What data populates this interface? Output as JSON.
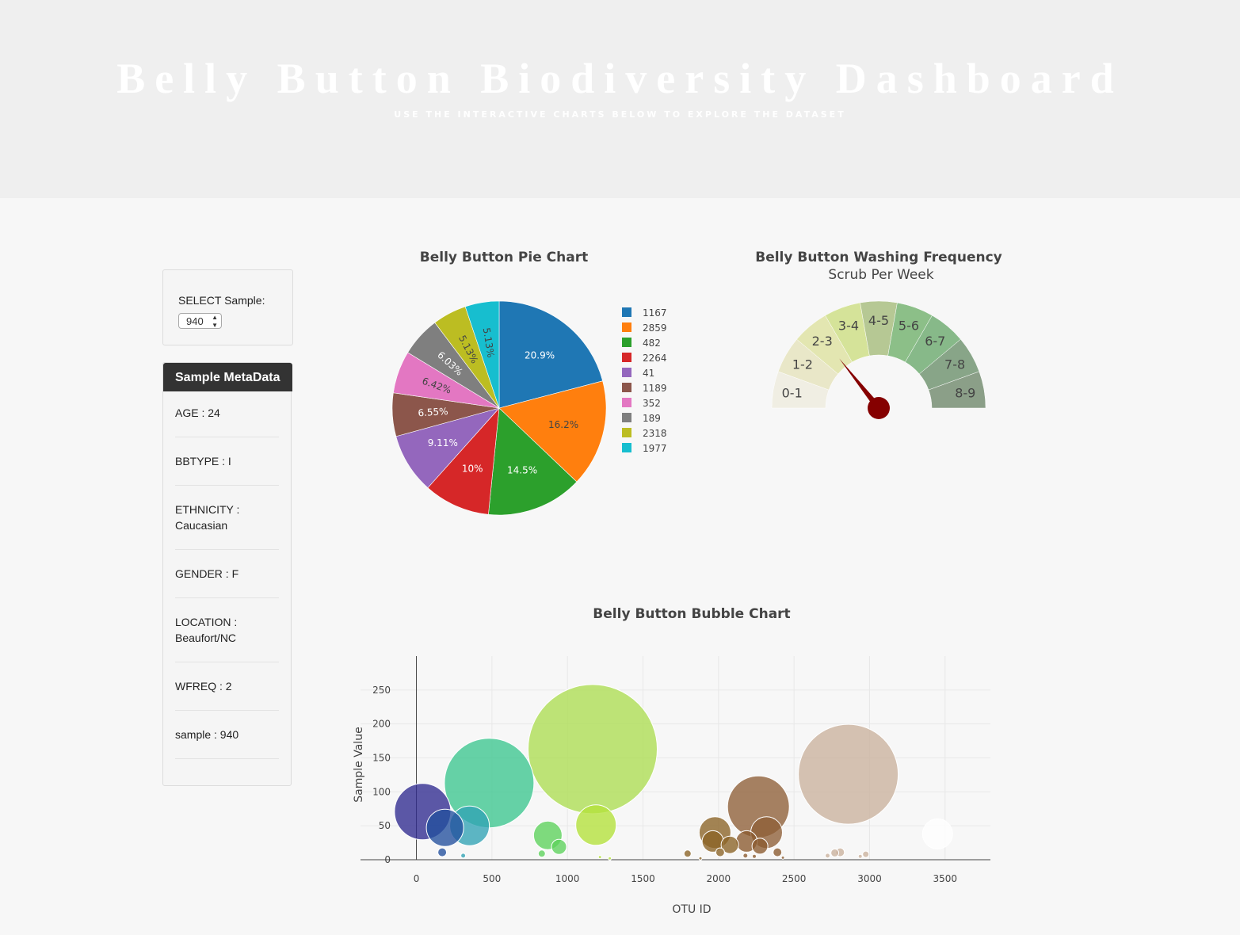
{
  "header": {
    "title": "Belly Button Biodiversity Dashboard",
    "subtitle": "USE THE INTERACTIVE CHARTS BELOW TO EXPLORE THE DATASET"
  },
  "selector": {
    "label": "SELECT Sample:",
    "value": "940"
  },
  "metadata": {
    "title": "Sample MetaData",
    "items": [
      {
        "text": "AGE : 24"
      },
      {
        "text": "BBTYPE : I"
      },
      {
        "text": "ETHNICITY : Caucasian"
      },
      {
        "text": "GENDER : F"
      },
      {
        "text": "LOCATION : Beaufort/NC"
      },
      {
        "text": "WFREQ : 2"
      },
      {
        "text": "sample : 940"
      }
    ]
  },
  "chart_data": [
    {
      "type": "pie",
      "title": "Belly Button Pie Chart",
      "labels": [
        "1167",
        "2859",
        "482",
        "2264",
        "41",
        "1189",
        "352",
        "189",
        "2318",
        "1977"
      ],
      "values": [
        163,
        126,
        113,
        78,
        71,
        51,
        50,
        47,
        40,
        40
      ],
      "percent_labels": [
        "20.9%",
        "16.2%",
        "14.5%",
        "10%",
        "9.11%",
        "6.55%",
        "6.42%",
        "6.03%",
        "5.13%",
        "5.13%"
      ],
      "colors": [
        "#1f77b4",
        "#ff7f0e",
        "#2ca02c",
        "#d62728",
        "#9467bd",
        "#8c564b",
        "#e377c2",
        "#7f7f7f",
        "#bcbd22",
        "#17becf"
      ],
      "legend": [
        "1167",
        "2859",
        "482",
        "2264",
        "41",
        "1189",
        "352",
        "189",
        "2318",
        "1977"
      ],
      "legend_placement": "right"
    },
    {
      "type": "gauge",
      "title": "Belly Button Washing Frequency",
      "subtitle": "Scrub Per Week",
      "sectors": [
        "0-1",
        "1-2",
        "2-3",
        "3-4",
        "4-5",
        "5-6",
        "6-7",
        "7-8",
        "8-9"
      ],
      "sector_colors": [
        "#f0eee3",
        "#e9e7c8",
        "#e3e6b1",
        "#d5e399",
        "#b6c894",
        "#8cbf88",
        "#87b989",
        "#88a588",
        "#8b9f88"
      ],
      "range": [
        0,
        9
      ],
      "value": 2,
      "needle_color": "#850000"
    },
    {
      "type": "scatter",
      "title": "Belly Button Bubble Chart",
      "xlabel": "OTU ID",
      "ylabel": "Sample Value",
      "xlim": [
        -370,
        3800
      ],
      "ylim": [
        0,
        300
      ],
      "x_ticks": [
        0,
        500,
        1000,
        1500,
        2000,
        2500,
        3000,
        3500
      ],
      "y_ticks": [
        0,
        50,
        100,
        150,
        200,
        250
      ],
      "grid": true,
      "points": [
        {
          "x": 41,
          "y": 71,
          "c": "#2f2a8f"
        },
        {
          "x": 189,
          "y": 47,
          "c": "#224f9e"
        },
        {
          "x": 352,
          "y": 50,
          "c": "#31a3b5"
        },
        {
          "x": 482,
          "y": 113,
          "c": "#3cc690"
        },
        {
          "x": 1167,
          "y": 163,
          "c": "#adde52"
        },
        {
          "x": 1189,
          "y": 51,
          "c": "#b4e13a"
        },
        {
          "x": 2264,
          "y": 78,
          "c": "#8e5f37"
        },
        {
          "x": 2859,
          "y": 126,
          "c": "#cbb29d"
        },
        {
          "x": 2318,
          "y": 40,
          "c": "#8e5f37"
        },
        {
          "x": 1977,
          "y": 40,
          "c": "#8a6325"
        },
        {
          "x": 870,
          "y": 36,
          "c": "#5cd25b"
        },
        {
          "x": 944,
          "y": 19,
          "c": "#5cd25b"
        },
        {
          "x": 2186,
          "y": 27,
          "c": "#8a5a2e"
        },
        {
          "x": 2075,
          "y": 22,
          "c": "#8a6325"
        },
        {
          "x": 1962,
          "y": 27,
          "c": "#8a6325"
        },
        {
          "x": 2274,
          "y": 20,
          "c": "#8a5a2e"
        },
        {
          "x": 3450,
          "y": 38,
          "c": "#ffffff"
        },
        {
          "x": 171,
          "y": 11,
          "c": "#224f9e"
        },
        {
          "x": 310,
          "y": 6,
          "c": "#31a3b5"
        },
        {
          "x": 830,
          "y": 9,
          "c": "#5cd25b"
        },
        {
          "x": 1795,
          "y": 9,
          "c": "#8a6325"
        },
        {
          "x": 2011,
          "y": 11,
          "c": "#8a6325"
        },
        {
          "x": 2390,
          "y": 11,
          "c": "#8a5a2e"
        },
        {
          "x": 2805,
          "y": 11,
          "c": "#cbb29d"
        },
        {
          "x": 2770,
          "y": 10,
          "c": "#cbb29d"
        },
        {
          "x": 2975,
          "y": 8,
          "c": "#cbb29d"
        },
        {
          "x": 2722,
          "y": 6,
          "c": "#cbb29d"
        },
        {
          "x": 2938,
          "y": 5,
          "c": "#cbb29d"
        },
        {
          "x": 2178,
          "y": 6,
          "c": "#8a5a2e"
        },
        {
          "x": 2237,
          "y": 5,
          "c": "#8a5a2e"
        },
        {
          "x": 2426,
          "y": 3,
          "c": "#8a5a2e"
        },
        {
          "x": 1215,
          "y": 4,
          "c": "#b4e13a"
        },
        {
          "x": 1280,
          "y": 2,
          "c": "#b4e13a"
        },
        {
          "x": 1880,
          "y": 2,
          "c": "#8a6325"
        }
      ]
    }
  ]
}
